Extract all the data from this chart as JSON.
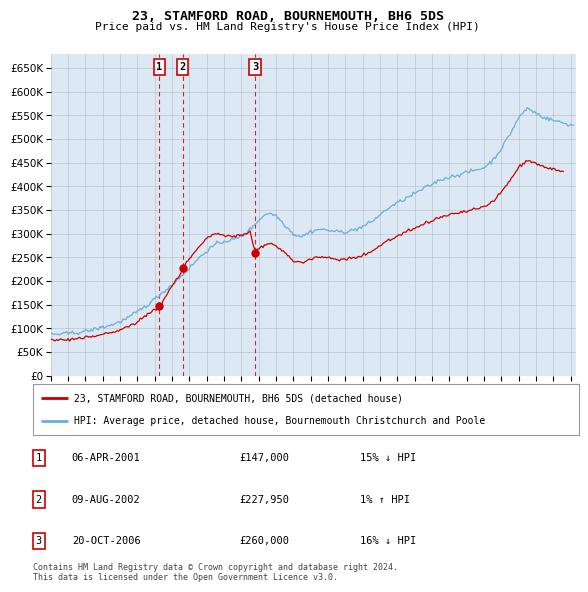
{
  "title": "23, STAMFORD ROAD, BOURNEMOUTH, BH6 5DS",
  "subtitle": "Price paid vs. HM Land Registry's House Price Index (HPI)",
  "legend_line1": "23, STAMFORD ROAD, BOURNEMOUTH, BH6 5DS (detached house)",
  "legend_line2": "HPI: Average price, detached house, Bournemouth Christchurch and Poole",
  "footer": "Contains HM Land Registry data © Crown copyright and database right 2024.\nThis data is licensed under the Open Government Licence v3.0.",
  "transactions": [
    {
      "num": 1,
      "date": "06-APR-2001",
      "price": 147000,
      "hpi_diff": "15%",
      "direction": "↓",
      "year": 2001.27
    },
    {
      "num": 2,
      "date": "09-AUG-2002",
      "price": 227950,
      "hpi_diff": "1%",
      "direction": "↑",
      "year": 2002.61
    },
    {
      "num": 3,
      "date": "20-OCT-2006",
      "price": 260000,
      "hpi_diff": "16%",
      "direction": "↓",
      "year": 2006.79
    }
  ],
  "hpi_color": "#6baed6",
  "price_color": "#cc0000",
  "transaction_color": "#cc0000",
  "chart_bg_color": "#dce9f5",
  "background_color": "#ffffff",
  "grid_color": "#aaaaaa",
  "ylim": [
    0,
    680000
  ],
  "yticks": [
    0,
    50000,
    100000,
    150000,
    200000,
    250000,
    300000,
    350000,
    400000,
    450000,
    500000,
    550000,
    600000,
    650000
  ],
  "xlim_start": 1995.0,
  "xlim_end": 2025.3
}
